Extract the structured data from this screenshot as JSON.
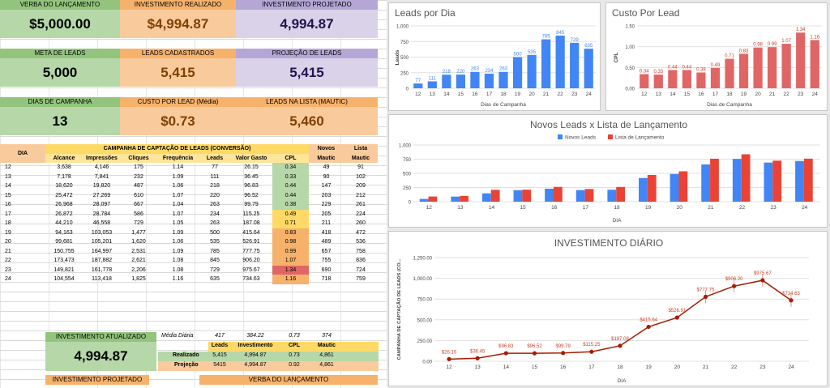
{
  "cards": {
    "verba_label": "VERBA DO LANÇAMENTO",
    "verba_value": "$5,000.00",
    "invest_real_label": "INVESTIMENTO REALIZADO",
    "invest_real_value": "$4,994.87",
    "invest_proj_label": "INVESTIMENTO PROJETADO",
    "invest_proj_value": "4,994.87",
    "meta_label": "META DE LEADS",
    "meta_value": "5,000",
    "leads_cad_label": "LEADS CADASTRADOS",
    "leads_cad_value": "5,415",
    "proj_leads_label": "PROJEÇÃO DE LEADS",
    "proj_leads_value": "5,415",
    "dias_label": "DIAS DE CAMPANHA",
    "dias_value": "13",
    "cpl_label": "CUSTO POR LEAD (Média)",
    "cpl_value": "$0.73",
    "lista_label": "LEADS NA LISTA (MAUTIC)",
    "lista_value": "5,460"
  },
  "table": {
    "dia_header": "DIA",
    "group_header": "CAMPANHA DE CAPTAÇÃO DE LEADS (CONVERSÃO)",
    "novos_header": "Novos",
    "lista_header": "Lista",
    "columns": [
      "Alcance",
      "Impressões",
      "Cliques",
      "Frequência",
      "Leads",
      "Valor Gasto",
      "CPL",
      "Mautic",
      "Mautic"
    ],
    "rows": [
      [
        "12",
        "3,638",
        "4,146",
        "175",
        "1.14",
        "77",
        "26.15",
        "0.34",
        "49",
        "91"
      ],
      [
        "13",
        "7,178",
        "7,841",
        "232",
        "1.09",
        "111",
        "36.45",
        "0.33",
        "90",
        "102"
      ],
      [
        "14",
        "18,620",
        "19,820",
        "487",
        "1.06",
        "218",
        "96.83",
        "0.44",
        "147",
        "209"
      ],
      [
        "15",
        "25,472",
        "27,269",
        "610",
        "1.07",
        "220",
        "96.52",
        "0.44",
        "203",
        "212"
      ],
      [
        "16",
        "26,968",
        "28,097",
        "667",
        "1.04",
        "263",
        "99.79",
        "0.38",
        "229",
        "261"
      ],
      [
        "17",
        "26,872",
        "28,784",
        "586",
        "1.07",
        "234",
        "115.25",
        "0.49",
        "205",
        "224"
      ],
      [
        "18",
        "44,210",
        "46,558",
        "729",
        "1.05",
        "263",
        "187.08",
        "0.71",
        "211",
        "260"
      ],
      [
        "19",
        "94,163",
        "103,053",
        "1,477",
        "1.09",
        "500",
        "415.64",
        "0.83",
        "418",
        "472"
      ],
      [
        "20",
        "99,681",
        "105,201",
        "1,620",
        "1.06",
        "535",
        "526.91",
        "0.98",
        "489",
        "536"
      ],
      [
        "21",
        "150,755",
        "164,997",
        "2,531",
        "1.09",
        "785",
        "777.75",
        "0.99",
        "657",
        "758"
      ],
      [
        "22",
        "173,473",
        "187,882",
        "2,621",
        "1.08",
        "845",
        "906.20",
        "1.07",
        "755",
        "836"
      ],
      [
        "23",
        "149,821",
        "161,778",
        "2,206",
        "1.08",
        "729",
        "975.67",
        "1.34",
        "690",
        "724"
      ],
      [
        "24",
        "104,554",
        "113,418",
        "1,825",
        "1.16",
        "635",
        "734.63",
        "1.16",
        "718",
        "759"
      ]
    ]
  },
  "summary": {
    "invest_atual_label": "INVESTIMENTO ATUALIZADO",
    "invest_atual_value": "4,994.87",
    "media_label": "Média Diária",
    "media_leads": "417",
    "media_invest": "384.22",
    "media_cpl": "0.73",
    "media_mautic": "374",
    "hdr_leads": "Leads",
    "hdr_invest": "Investimento",
    "hdr_cpl": "CPL",
    "hdr_mautic": "Mautic",
    "real_label": "Realizado",
    "real_leads": "5,415",
    "real_invest": "4,994.87",
    "real_cpl": "0.73",
    "real_mautic": "4,861",
    "proj_label": "Projeção",
    "proj_leads": "5415",
    "proj_invest": "4,994.87",
    "proj_cpl": "0.92",
    "proj_mautic": "4,861",
    "bottom_invest_proj": "INVESTIMENTO PROJETADO",
    "bottom_verba": "VERBA DO LANÇAMENTO"
  },
  "colors": {
    "blue": "#4285f4",
    "red": "#e06666",
    "red2": "#ea4335",
    "darkred": "#a61c00",
    "cpl_green": "#b6d7a8",
    "cpl_yellow": "#ffd966",
    "cpl_orange": "#f6b26b",
    "cpl_red": "#e06666"
  },
  "chart_data": [
    {
      "type": "bar",
      "title": "Leads por Dia",
      "xlabel": "Dias de Campanha",
      "ylabel": "Leads",
      "categories": [
        "12",
        "13",
        "14",
        "15",
        "16",
        "17",
        "18",
        "19",
        "20",
        "21",
        "22",
        "23",
        "24"
      ],
      "values": [
        77,
        111,
        218,
        220,
        263,
        234,
        263,
        500,
        535,
        785,
        845,
        729,
        635
      ],
      "ylim": [
        0,
        1000
      ],
      "yticks": [
        "0",
        "250",
        "500",
        "750",
        "1,000"
      ]
    },
    {
      "type": "bar",
      "title": "Custo Por Lead",
      "xlabel": "Dias de Campanha",
      "ylabel": "CPL",
      "categories": [
        "12",
        "13",
        "14",
        "15",
        "16",
        "17",
        "18",
        "19",
        "20",
        "21",
        "22",
        "23",
        "24"
      ],
      "values": [
        0.34,
        0.33,
        0.44,
        0.44,
        0.38,
        0.49,
        0.71,
        0.83,
        0.98,
        0.99,
        1.07,
        1.34,
        1.16
      ],
      "labels": [
        "0.34",
        "0.33",
        "0.44",
        "0.44",
        "0.38",
        "0.49",
        "0.71",
        "0.83",
        "0.98",
        "0.99",
        "1.07",
        "1.34",
        "1.16"
      ],
      "ylim": [
        0,
        1.5
      ],
      "yticks": [
        "0.00",
        "0.50",
        "1.00",
        "1.50"
      ]
    },
    {
      "type": "bar",
      "title": "Novos Leads x Lista de Lançamento",
      "xlabel": "DIA",
      "legend": [
        "Novos Leads",
        "Lista de Lançamento"
      ],
      "categories": [
        "12",
        "13",
        "14",
        "15",
        "16",
        "17",
        "18",
        "19",
        "20",
        "21",
        "22",
        "23",
        "24"
      ],
      "series": [
        {
          "name": "Novos Leads",
          "values": [
            49,
            90,
            147,
            203,
            229,
            205,
            211,
            418,
            489,
            657,
            755,
            690,
            718
          ]
        },
        {
          "name": "Lista de Lançamento",
          "values": [
            91,
            102,
            209,
            212,
            261,
            224,
            260,
            472,
            536,
            758,
            836,
            724,
            759
          ]
        }
      ],
      "ylim": [
        0,
        1000
      ],
      "yticks": [
        "0",
        "250",
        "500",
        "750",
        "1,000"
      ]
    },
    {
      "type": "line",
      "title": "INVESTIMENTO DIÁRIO",
      "xlabel": "DIA",
      "ylabel": "CAMPANHA DE CAPTAÇÃO DE LEADS (CO...",
      "categories": [
        "12",
        "13",
        "14",
        "15",
        "16",
        "17",
        "18",
        "19",
        "20",
        "21",
        "22",
        "23",
        "24"
      ],
      "values": [
        26.15,
        36.45,
        96.83,
        96.52,
        99.79,
        115.25,
        187.08,
        415.64,
        526.91,
        777.75,
        906.2,
        975.67,
        734.63
      ],
      "labels": [
        "$26.15",
        "$36.45",
        "$96.83",
        "$96.52",
        "$99.79",
        "$115.25",
        "$187.08",
        "$415.64",
        "$526.91",
        "$777.75",
        "$906.20",
        "$975.67",
        "$734.63"
      ],
      "ylim": [
        0,
        1250
      ],
      "yticks": [
        "0.00",
        "250.00",
        "500.00",
        "750.00",
        "1,000.00",
        "1,250.00"
      ]
    }
  ]
}
